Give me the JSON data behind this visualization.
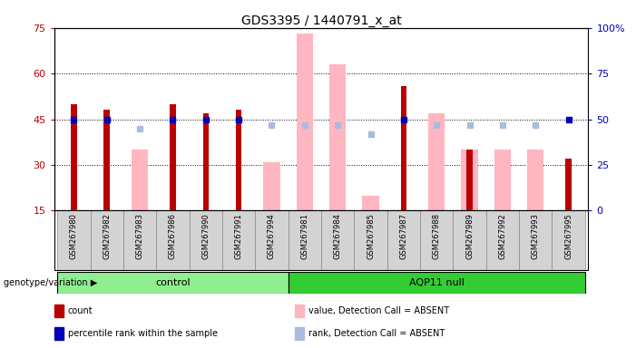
{
  "title": "GDS3395 / 1440791_x_at",
  "samples": [
    "GSM267980",
    "GSM267982",
    "GSM267983",
    "GSM267986",
    "GSM267990",
    "GSM267991",
    "GSM267994",
    "GSM267981",
    "GSM267984",
    "GSM267985",
    "GSM267987",
    "GSM267988",
    "GSM267989",
    "GSM267992",
    "GSM267993",
    "GSM267995"
  ],
  "n_control": 7,
  "n_aqp11": 9,
  "count_present": [
    50,
    48,
    null,
    50,
    47,
    48,
    null,
    null,
    null,
    null,
    56,
    null,
    35,
    null,
    null,
    32
  ],
  "count_absent": [
    null,
    null,
    35,
    null,
    null,
    null,
    31,
    73,
    63,
    20,
    null,
    47,
    35,
    35,
    35,
    null
  ],
  "rank_present": [
    50,
    50,
    null,
    50,
    50,
    50,
    null,
    null,
    null,
    null,
    50,
    null,
    null,
    null,
    null,
    50
  ],
  "rank_absent": [
    null,
    null,
    45,
    null,
    null,
    null,
    47,
    47,
    47,
    42,
    null,
    47,
    47,
    47,
    47,
    null
  ],
  "blue_present": [
    true,
    true,
    false,
    true,
    true,
    true,
    false,
    false,
    false,
    false,
    true,
    false,
    false,
    false,
    false,
    true
  ],
  "blue_absent": [
    false,
    false,
    true,
    false,
    false,
    false,
    true,
    true,
    true,
    true,
    false,
    true,
    true,
    true,
    true,
    false
  ],
  "ylim_left": [
    15,
    75
  ],
  "ylim_right": [
    0,
    100
  ],
  "left_ticks": [
    15,
    30,
    45,
    60,
    75
  ],
  "right_ticks": [
    0,
    25,
    50,
    75,
    100
  ],
  "red_color": "#BB0000",
  "blue_color": "#0000BB",
  "pink_color": "#FFB6C1",
  "lavender_color": "#AABBDD",
  "green_light": "#90EE90",
  "green_dark": "#33CC33",
  "bg_color": "#D3D3D3",
  "group_label": "genotype/variation"
}
